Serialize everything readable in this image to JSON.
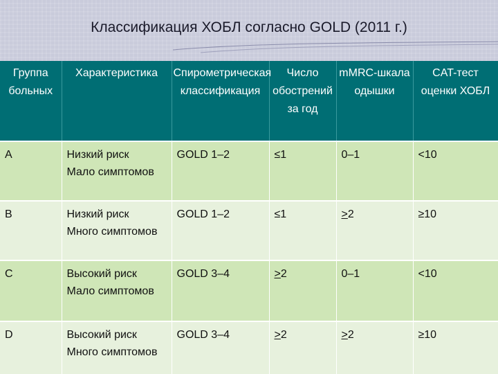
{
  "title": "Классификация ХОБЛ согласно GOLD (2011 г.)",
  "colors": {
    "header_bg": "#006e74",
    "row_dark": "#cfe6b7",
    "row_light": "#e7f1dd",
    "slide_bg": "#d6d8e6"
  },
  "table": {
    "headers": [
      "Группа больных",
      "Характеристика",
      "Спирометрическая классификация",
      "Число обострений за год",
      "mMRC-шкала одышки",
      "CAT-тест оценки ХОБЛ"
    ],
    "rows": [
      {
        "group": "A",
        "risk": "Низкий риск",
        "symptoms": "Мало симптомов",
        "spirometry": "GOLD 1–2",
        "exacerbation_prefix": "≤",
        "exacerbations": "1",
        "mmrc_prefix": "",
        "mmrc": "0–1",
        "cat": "<10"
      },
      {
        "group": "B",
        "risk": "Низкий риск",
        "symptoms": "Много симптомов",
        "spirometry": "GOLD 1–2",
        "exacerbation_prefix": "≤",
        "exacerbations": "1",
        "mmrc_prefix": ">",
        "mmrc": "2",
        "cat": "≥10"
      },
      {
        "group": "C",
        "risk": "Высокий риск",
        "symptoms": "Мало симптомов",
        "spirometry": "GOLD 3–4",
        "exacerbation_prefix": ">",
        "exacerbations": "2",
        "mmrc_prefix": "",
        "mmrc": "0–1",
        "cat": "<10"
      },
      {
        "group": "D",
        "risk": "Высокий риск",
        "symptoms": "Много симптомов",
        "spirometry": "GOLD 3–4",
        "exacerbation_prefix": ">",
        "exacerbations": "2",
        "mmrc_prefix": ">",
        "mmrc": "2",
        "cat": "≥10"
      }
    ]
  }
}
